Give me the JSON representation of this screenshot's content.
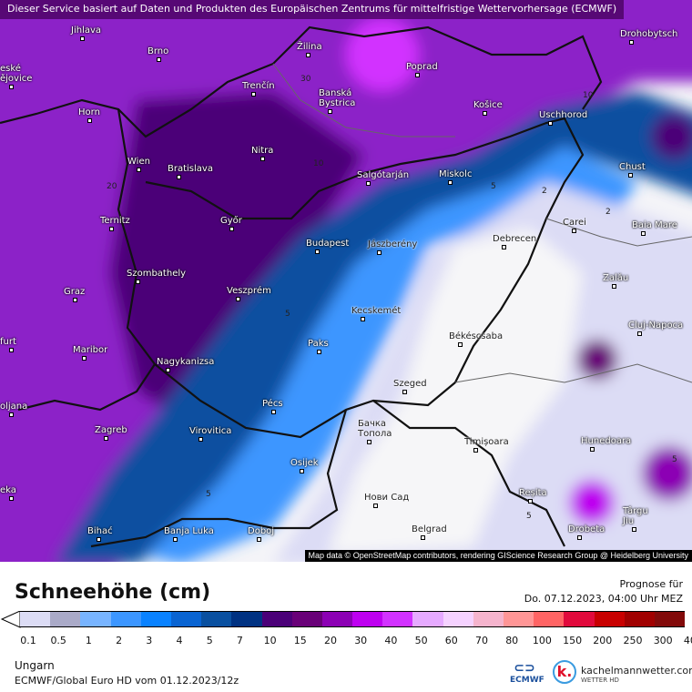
{
  "banner": "Dieser Service basiert auf Daten und Produkten des Europäischen Zentrums für mittelfristige Wettervorhersage (ECMWF)",
  "attribution": "Map data © OpenStreetMap contributors, rendering GIScience Research Group @ Heidelberg University",
  "cities": [
    "Jihlava",
    "Brno",
    "Žilina",
    "Poprad",
    "Drohobytsch",
    "eské\nějovice",
    "Trenčín",
    "Banská\nBystrica",
    "Košice",
    "Horn",
    "Uschhorod",
    "Wien",
    "Bratislava",
    "Nitra",
    "Salgótarján",
    "Miskolc",
    "Chust",
    "Ternitz",
    "Győr",
    "Budapest",
    "Jászberény",
    "Debrecen",
    "Carei",
    "Baia Mare",
    "Szombathely",
    "Veszprém",
    "Zalău",
    "Graz",
    "Kecskemét",
    "Cluj-Napoca",
    "Békéscsaba",
    "Paks",
    "furt",
    "Maribor",
    "Nagykanizsa",
    "Szeged",
    "Pécs",
    "oljana",
    "Zagreb",
    "Virovitica",
    "Бачка\nТопола",
    "Timișoara",
    "Hunedoara",
    "Osijek",
    "eka",
    "Нови Сад",
    "Reșita",
    "Târgu\nJiu",
    "Bihać",
    "Banja Luka",
    "Doboj",
    "Belgrad",
    "Drobeta"
  ],
  "contour_labels": [
    "30",
    "20",
    "10",
    "5",
    "2",
    "5",
    "2",
    "5",
    "5",
    "5",
    "10"
  ],
  "legend": {
    "title": "Schneehöhe (cm)",
    "forecast_label": "Prognose für",
    "forecast_time": "Do. 07.12.2023, 04:00 Uhr MEZ",
    "ticks": [
      "0.1",
      "0.5",
      "1",
      "2",
      "3",
      "4",
      "5",
      "7",
      "10",
      "15",
      "20",
      "30",
      "40",
      "50",
      "60",
      "70",
      "80",
      "100",
      "150",
      "200",
      "250",
      "300",
      "400"
    ],
    "colors": [
      "#dcdcf5",
      "#aaaac8",
      "#78b4ff",
      "#3c96ff",
      "#0a82ff",
      "#0a64d2",
      "#0a50a0",
      "#003282",
      "#4b0078",
      "#690078",
      "#8c00b4",
      "#be00f0",
      "#d232ff",
      "#e6aaff",
      "#f5d2ff",
      "#f5b4cd",
      "#ff9696",
      "#ff6464",
      "#e10a3c",
      "#c80000",
      "#a00000",
      "#820a0a"
    ],
    "under_color": "#ffffff",
    "over_color": "#500000"
  },
  "footer": {
    "region": "Ungarn",
    "model": "ECMWF/Global Euro HD vom  01.12.2023/12z"
  },
  "logos": {
    "ecmwf": "ECMWF",
    "k": "k.",
    "site": "kachelmannwetter.com",
    "site_sub": "WETTER HD"
  }
}
